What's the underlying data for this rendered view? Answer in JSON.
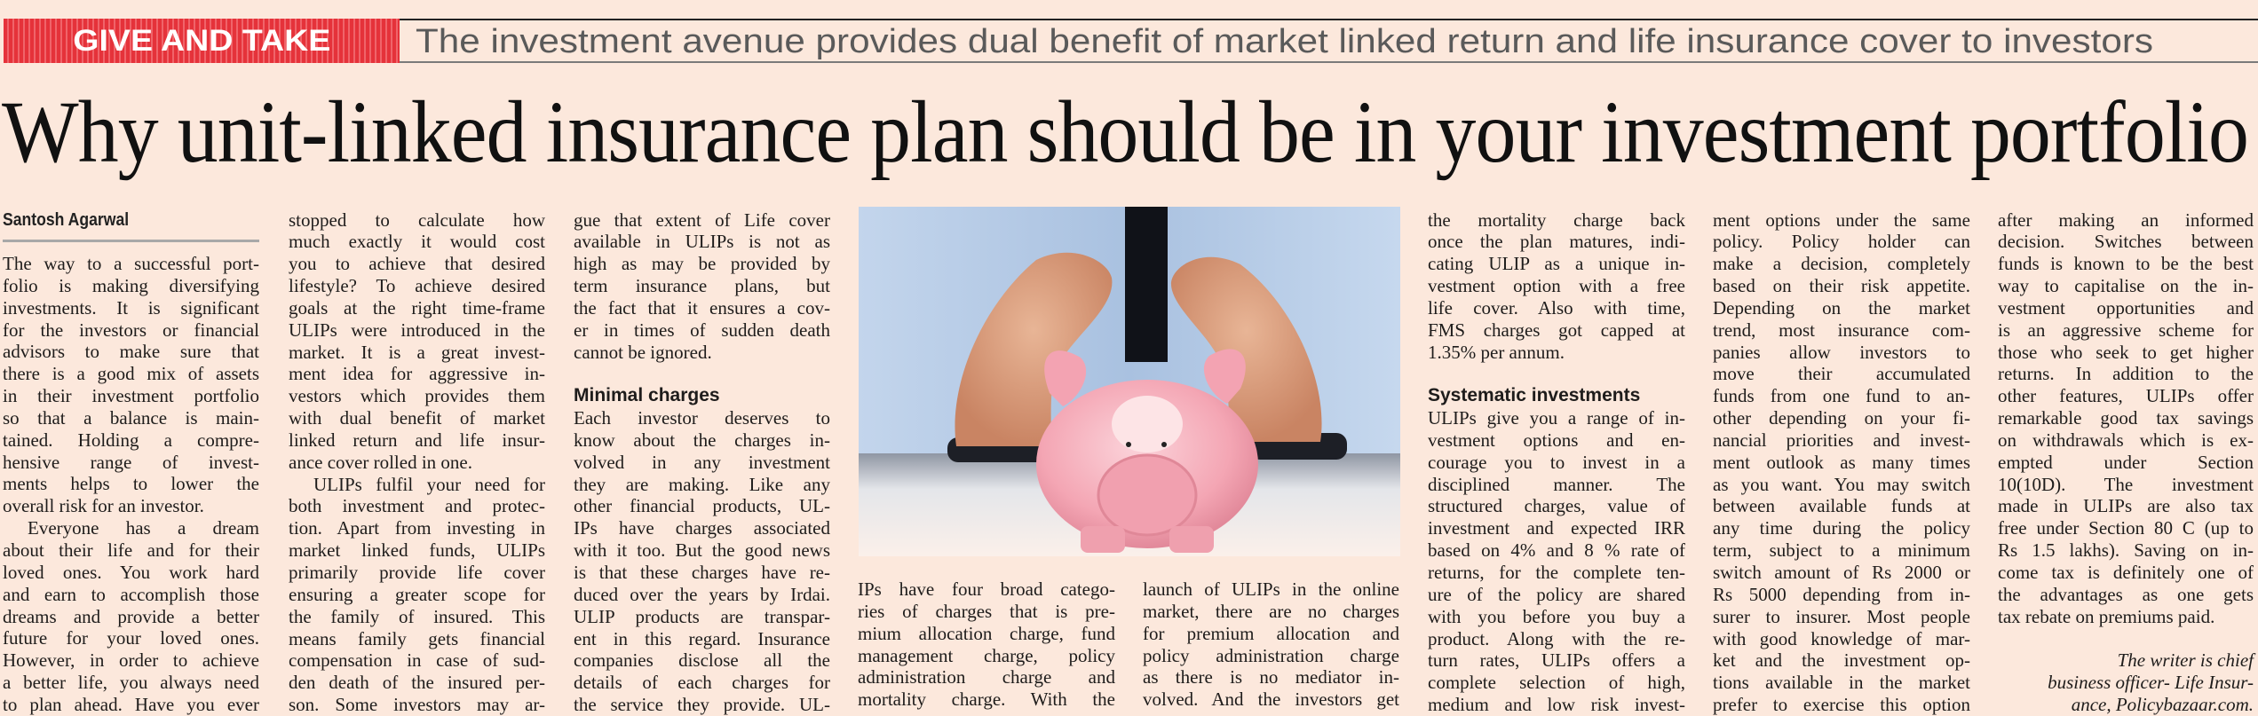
{
  "section": {
    "banner": "GIVE AND TAKE",
    "strapline": "The investment avenue provides dual benefit of market linked return and life insurance cover to investors"
  },
  "headline": "Why unit-linked insurance plan should be in your investment portfolio",
  "author": "Santosh Agarwal",
  "photo": {
    "description_icon": "piggy-bank-protected-by-hands-photo",
    "colors": {
      "shirt": "#b7cbe6",
      "pig": "#f4a9b6",
      "skin": "#d99a78"
    }
  },
  "columns": [
    {
      "blocks": [
        {
          "type": "p",
          "indent": false,
          "ends": true,
          "lines": [
            "The way to a successful port-",
            "folio is making diversifying",
            "investments. It is significant",
            "for the investors or financial",
            "advisors to make sure that",
            "there is a good mix of assets",
            "in their investment portfolio",
            "so that a balance is main-",
            "tained. Holding a compre-",
            "hensive range of invest-",
            "ments helps to lower the",
            "overall risk for an investor."
          ]
        },
        {
          "type": "p",
          "indent": true,
          "ends": false,
          "lines": [
            "Everyone has a dream",
            "about their life and for their",
            "loved ones. You work hard",
            "and earn to accomplish those",
            "dreams and provide a better",
            "future for your loved ones.",
            "However, in order to achieve",
            "a better life, you always need",
            "to plan ahead. Have you ever"
          ]
        }
      ]
    },
    {
      "blocks": [
        {
          "type": "p",
          "indent": false,
          "ends": true,
          "lines": [
            "stopped to calculate how",
            "much exactly it would cost",
            "you to achieve that desired",
            "lifestyle? To achieve desired",
            "goals at the right time-frame",
            "ULIPs were introduced in the",
            "market. It is a great invest-",
            "ment idea for aggressive in-",
            "vestors which provides them",
            "with dual benefit of market",
            "linked return and life insur-",
            "ance cover rolled in one."
          ]
        },
        {
          "type": "p",
          "indent": true,
          "ends": false,
          "lines": [
            "ULIPs fulfil your need for",
            "both investment and protec-",
            "tion. Apart from investing in",
            "market linked funds, ULIPs",
            "primarily provide life cover",
            "ensuring a greater scope for",
            "the family of insured. This",
            "means family gets financial",
            "compensation in case of sud-",
            "den death of the insured per-",
            "son. Some investors may ar-"
          ]
        }
      ]
    },
    {
      "blocks": [
        {
          "type": "p",
          "indent": false,
          "ends": true,
          "lines": [
            "gue that extent of Life cover",
            "available in ULIPs is not as",
            "high as may be provided by",
            "term insurance plans, but",
            "the fact that it ensures a cov-",
            "er in times of sudden death",
            "cannot be ignored."
          ]
        },
        {
          "type": "h",
          "text": "Minimal charges"
        },
        {
          "type": "p",
          "indent": false,
          "ends": false,
          "lines": [
            "Each investor deserves to",
            "know about the charges in-",
            "volved in any investment",
            "they are making. Like any",
            "other financial products, UL-",
            "IPs have charges associated",
            "with it too. But the good news",
            "is that these charges have re-",
            "duced over the years by Irdai.",
            "ULIP products are transpar-",
            "ent in this regard. Insurance",
            "companies disclose all the",
            "details of each charges for",
            "the service they provide. UL-"
          ]
        }
      ]
    },
    {
      "blocks": [
        {
          "type": "p",
          "indent": false,
          "ends": false,
          "lines": [
            "IPs have four broad catego-",
            "ries of charges that is pre-",
            "mium allocation charge, fund",
            "management charge, policy",
            "administration charge and",
            "mortality charge. With the"
          ]
        }
      ]
    },
    {
      "blocks": [
        {
          "type": "p",
          "indent": false,
          "ends": false,
          "lines": [
            "launch of ULIPs in the online",
            "market, there are no charges",
            "for premium allocation and",
            "policy administration charge",
            "as there is no mediator in-",
            "volved. And the investors get"
          ]
        }
      ]
    },
    {
      "blocks": [
        {
          "type": "p",
          "indent": false,
          "ends": true,
          "lines": [
            "the mortality charge back",
            "once the plan matures, indi-",
            "cating ULIP as a unique in-",
            "vestment option with a free",
            "life cover. Also with time,",
            "FMS charges got capped at",
            "1.35% per annum."
          ]
        },
        {
          "type": "h",
          "text": "Systematic investments"
        },
        {
          "type": "p",
          "indent": false,
          "ends": false,
          "lines": [
            "ULIPs give you a range of in-",
            "vestment options and en-",
            "courage you to invest in a",
            "disciplined manner. The",
            "structured charges, value of",
            "investment and expected IRR",
            "based on 4% and 8 % rate of",
            "returns, for the complete ten-",
            "ure of the policy are shared",
            "with you before you buy a",
            "product. Along with the re-",
            "turn rates, ULIPs offers a",
            "complete selection of high,",
            "medium and low risk invest-"
          ]
        }
      ]
    },
    {
      "blocks": [
        {
          "type": "p",
          "indent": false,
          "ends": false,
          "lines": [
            "ment options under the same",
            "policy. Policy holder can",
            "make a decision, completely",
            "based on their risk appetite.",
            "Depending on the market",
            "trend, most insurance com-",
            "panies allow investors to",
            "move their accumulated",
            "funds from one fund to an-",
            "other depending on your fi-",
            "nancial priorities and invest-",
            "ment outlook as many times",
            "as you want. You may switch",
            "between available funds at",
            "any time during the policy",
            "term, subject to a minimum",
            "switch amount of Rs 2000 or",
            "Rs 5000 depending from in-",
            "surer to insurer. Most people",
            "with good knowledge of mar-",
            "ket and the investment op-",
            "tions available in the market",
            "prefer to exercise this option"
          ]
        }
      ]
    },
    {
      "blocks": [
        {
          "type": "p",
          "indent": false,
          "ends": true,
          "lines": [
            "after making an informed",
            "decision. Switches between",
            "funds is known to be the best",
            "way to capitalise on the in-",
            "vestment opportunities and",
            "is an aggressive scheme for",
            "those who seek to get higher",
            "returns. In addition to the",
            "other features, ULIPs offer",
            "remarkable good tax savings",
            "on withdrawals which is ex-",
            "empted under Section",
            "10(10D). The investment",
            "made in ULIPs are also tax",
            "free under Section 80 C (up to",
            "Rs 1.5 lakhs). Saving on in-",
            "come tax is definitely one of",
            "the advantages as one gets",
            "tax rebate on premiums paid."
          ]
        },
        {
          "type": "byline",
          "lines": [
            "The writer is chief",
            "business officer- Life Insur-",
            "ance, Policybazaar.com."
          ]
        }
      ]
    }
  ]
}
